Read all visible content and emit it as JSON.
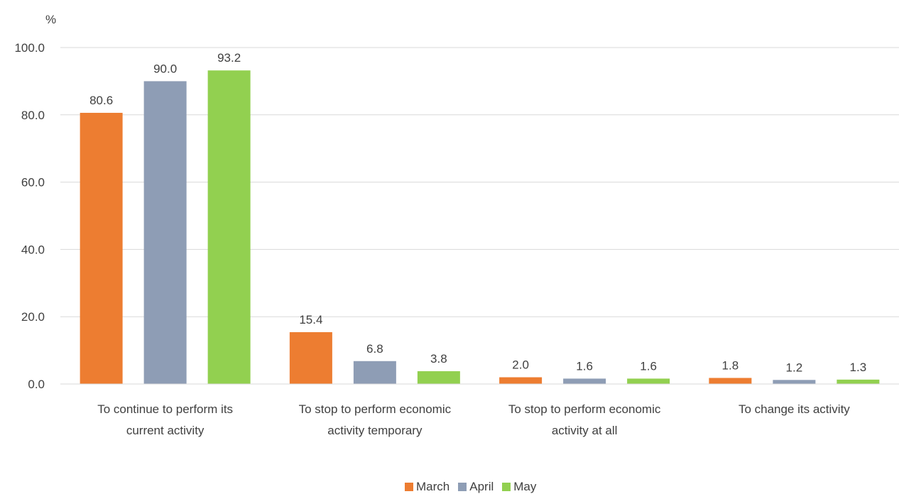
{
  "chart_data": {
    "type": "bar",
    "title": "",
    "xlabel": "",
    "ylabel": "%",
    "ylim": [
      0,
      100
    ],
    "yticks": [
      0,
      20,
      40,
      60,
      80,
      100
    ],
    "ytick_labels": [
      "0.0",
      "20.0",
      "40.0",
      "60.0",
      "80.0",
      "100.0"
    ],
    "grid": true,
    "legend_position": "bottom",
    "categories": [
      [
        "To continue to perform its",
        "current activity"
      ],
      [
        "To stop to perform economic",
        "activity temporary"
      ],
      [
        "To stop to perform economic",
        "activity at all"
      ],
      [
        "To change its activity"
      ]
    ],
    "series": [
      {
        "name": "March",
        "color": "#ed7d31",
        "values": [
          80.6,
          15.4,
          2.0,
          1.8
        ],
        "labels": [
          "80.6",
          "15.4",
          "2.0",
          "1.8"
        ]
      },
      {
        "name": "April",
        "color": "#8e9db5",
        "values": [
          90.0,
          6.8,
          1.6,
          1.2
        ],
        "labels": [
          "90.0",
          "6.8",
          "1.6",
          "1.2"
        ]
      },
      {
        "name": "May",
        "color": "#92d050",
        "values": [
          93.2,
          3.8,
          1.6,
          1.3
        ],
        "labels": [
          "93.2",
          "3.8",
          "1.6",
          "1.3"
        ]
      }
    ]
  }
}
